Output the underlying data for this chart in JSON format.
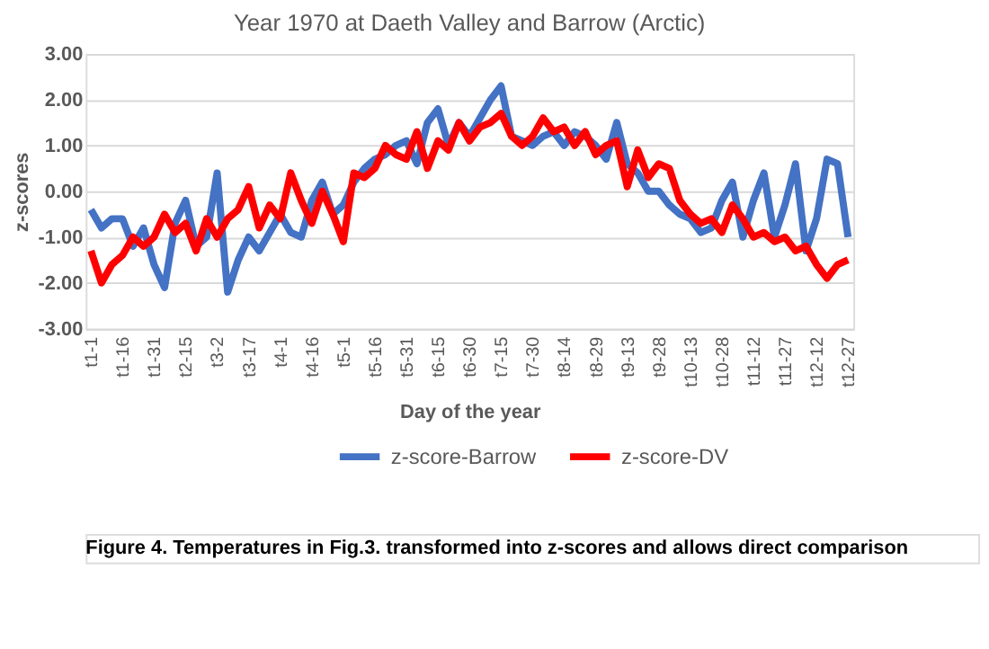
{
  "chart_data": {
    "type": "line",
    "title": "Year 1970 at Daeth Valley and Barrow (Arctic)",
    "xlabel": "Day of the year",
    "ylabel": "z-scores",
    "categories": [
      "t1-1",
      null,
      null,
      "t1-16",
      null,
      null,
      "t1-31",
      null,
      null,
      "t2-15",
      null,
      null,
      "t3-2",
      null,
      null,
      "t3-17",
      null,
      null,
      "t4-1",
      null,
      null,
      "t4-16",
      null,
      null,
      "t5-1",
      null,
      null,
      "t5-16",
      null,
      null,
      "t5-31",
      null,
      null,
      "t6-15",
      null,
      null,
      "t6-30",
      null,
      null,
      "t7-15",
      null,
      null,
      "t7-30",
      null,
      null,
      "t8-14",
      null,
      null,
      "t8-29",
      null,
      null,
      "t9-13",
      null,
      null,
      "t9-28",
      null,
      null,
      "t10-13",
      null,
      null,
      "t10-28",
      null,
      null,
      "t11-12",
      null,
      null,
      "t11-27",
      null,
      null,
      "t12-12",
      null,
      null,
      "t12-27"
    ],
    "series": [
      {
        "name": "z-score-Barrow",
        "color": "#4472c4",
        "values": [
          -0.4,
          -0.8,
          -0.6,
          -0.6,
          -1.2,
          -0.8,
          -1.6,
          -2.1,
          -0.7,
          -0.2,
          -1.2,
          -1.0,
          0.4,
          -2.2,
          -1.5,
          -1.0,
          -1.3,
          -0.9,
          -0.5,
          -0.9,
          -1.0,
          -0.2,
          0.2,
          -0.5,
          -0.3,
          0.2,
          0.5,
          0.7,
          0.8,
          1.0,
          1.1,
          0.6,
          1.5,
          1.8,
          1.0,
          1.5,
          1.2,
          1.6,
          2.0,
          2.3,
          1.2,
          1.1,
          1.0,
          1.2,
          1.3,
          1.0,
          1.3,
          1.2,
          1.0,
          0.7,
          1.5,
          0.6,
          0.4,
          0.0,
          0.0,
          -0.3,
          -0.5,
          -0.6,
          -0.9,
          -0.8,
          -0.2,
          0.2,
          -1.0,
          -0.2,
          0.4,
          -1.0,
          -0.3,
          0.6,
          -1.3,
          -0.6,
          0.7,
          0.6,
          -1.0
        ]
      },
      {
        "name": "z-score-DV",
        "color": "#ff0000",
        "values": [
          -1.3,
          -2.0,
          -1.6,
          -1.4,
          -1.0,
          -1.2,
          -1.0,
          -0.5,
          -0.9,
          -0.7,
          -1.3,
          -0.6,
          -1.0,
          -0.6,
          -0.4,
          0.1,
          -0.8,
          -0.3,
          -0.6,
          0.4,
          -0.2,
          -0.7,
          0.0,
          -0.5,
          -1.1,
          0.4,
          0.3,
          0.5,
          1.0,
          0.8,
          0.7,
          1.3,
          0.5,
          1.1,
          0.9,
          1.5,
          1.1,
          1.4,
          1.5,
          1.7,
          1.2,
          1.0,
          1.2,
          1.6,
          1.3,
          1.4,
          1.0,
          1.3,
          0.8,
          1.0,
          1.1,
          0.1,
          0.9,
          0.3,
          0.6,
          0.5,
          -0.2,
          -0.5,
          -0.7,
          -0.6,
          -0.9,
          -0.3,
          -0.6,
          -1.0,
          -0.9,
          -1.1,
          -1.0,
          -1.3,
          -1.2,
          -1.6,
          -1.9,
          -1.6,
          -1.5
        ]
      }
    ],
    "ylim": [
      -3,
      3
    ],
    "yticks": [
      {
        "value": -3,
        "label": "-3.00"
      },
      {
        "value": -2,
        "label": "-2.00"
      },
      {
        "value": -1,
        "label": "-1.00"
      },
      {
        "value": 0,
        "label": "0.00"
      },
      {
        "value": 1,
        "label": "1.00"
      },
      {
        "value": 2,
        "label": "2.00"
      },
      {
        "value": 3,
        "label": "3.00"
      }
    ],
    "grid": "y",
    "legend": "bottom",
    "marker": "none",
    "line_style": "solid",
    "annotations": [
      "Figure 4. Temperatures in Fig.3. transformed into z-scores and allows direct comparison"
    ]
  }
}
